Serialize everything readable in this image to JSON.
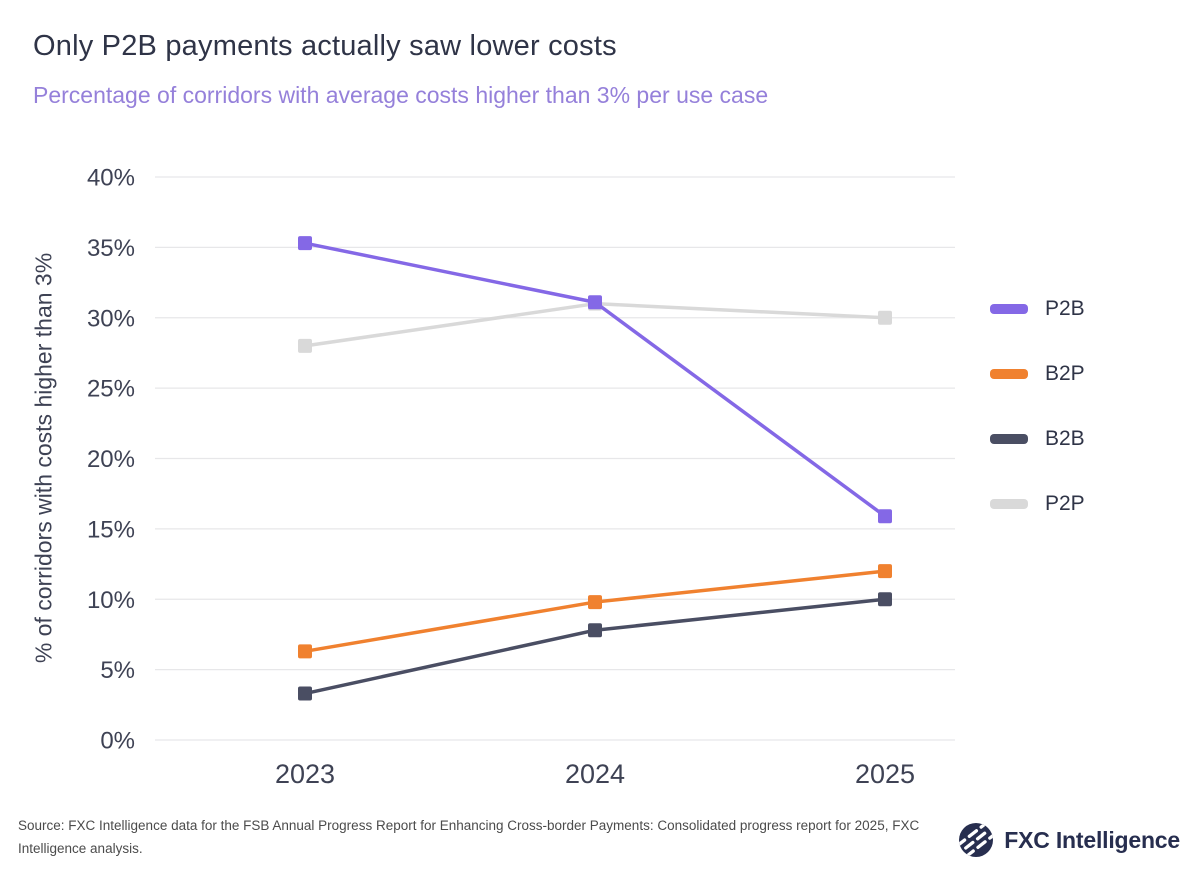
{
  "header": {
    "title": "Only P2B payments actually saw lower costs",
    "subtitle": "Percentage of corridors with average costs higher than 3% per use case"
  },
  "chart_data": {
    "type": "line",
    "title": "Only P2B payments actually saw lower costs",
    "subtitle": "Percentage of corridors with average costs higher than 3% per use case",
    "categories": [
      "2023",
      "2024",
      "2025"
    ],
    "series": [
      {
        "name": "P2B",
        "color": "#8468e6",
        "values": [
          35.3,
          31.1,
          15.9
        ]
      },
      {
        "name": "B2P",
        "color": "#f0812f",
        "values": [
          6.3,
          9.8,
          12.0
        ]
      },
      {
        "name": "B2B",
        "color": "#4a4e63",
        "values": [
          3.3,
          7.8,
          10.0
        ]
      },
      {
        "name": "P2P",
        "color": "#d9d9d9",
        "values": [
          28.0,
          31.0,
          30.0
        ]
      }
    ],
    "xlabel": "",
    "ylabel": "% of corridors with costs higher than 3%",
    "ylim": [
      0,
      40
    ],
    "ytick_step": 5,
    "ytick_suffix": "%",
    "grid": "horizontal",
    "legend_position": "right",
    "grid_color": "#e7e7e9",
    "tick_color": "#3e4254"
  },
  "footer": {
    "source": "Source: FXC Intelligence data for the FSB Annual Progress Report for Enhancing Cross-border Payments: Consolidated progress report for 2025, FXC Intelligence analysis.",
    "logo_text": "FXC Intelligence"
  }
}
